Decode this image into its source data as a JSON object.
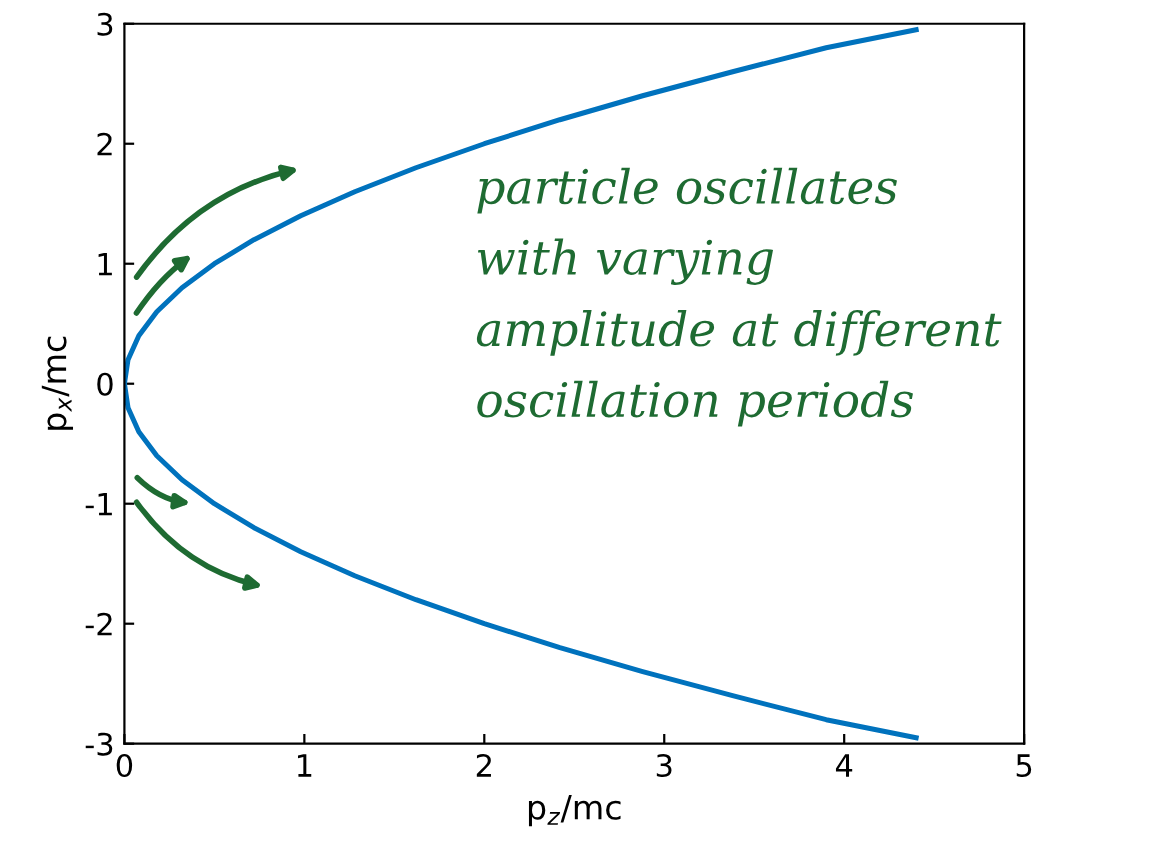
{
  "chart_data": {
    "type": "line",
    "xlabel": "p$_{z}$/mc",
    "ylabel": "p$_{x}$/mc",
    "series": [
      {
        "color": "#0072bd",
        "x": [
          4.4,
          3.9,
          3.38,
          2.88,
          2.42,
          2.0,
          1.62,
          1.28,
          0.98,
          0.72,
          0.5,
          0.32,
          0.18,
          0.08,
          0.02,
          0,
          0.02,
          0.08,
          0.18,
          0.32,
          0.5,
          0.72,
          0.98,
          1.28,
          1.62,
          2.0,
          2.42,
          2.88,
          3.38,
          3.9,
          4.4
        ],
        "values": [
          -2.95,
          -2.8,
          -2.6,
          -2.4,
          -2.2,
          -2.0,
          -1.8,
          -1.6,
          -1.4,
          -1.2,
          -1.0,
          -0.8,
          -0.6,
          -0.4,
          -0.2,
          0,
          0.2,
          0.4,
          0.6,
          0.8,
          1.0,
          1.2,
          1.4,
          1.6,
          1.8,
          2.0,
          2.2,
          2.4,
          2.6,
          2.8,
          2.95
        ]
      }
    ],
    "xlim": [
      0,
      5
    ],
    "ylim": [
      -3,
      3
    ],
    "xticks": [
      0,
      1,
      2,
      3,
      4,
      5
    ],
    "yticks": [
      -3,
      -2,
      -1,
      0,
      1,
      2,
      3
    ],
    "grid": false,
    "legend": false,
    "marker": "none",
    "line_style": "solid",
    "annotations": [
      "particle oscillates\nwith varying\namplitude at different\noscillation periods"
    ]
  }
}
